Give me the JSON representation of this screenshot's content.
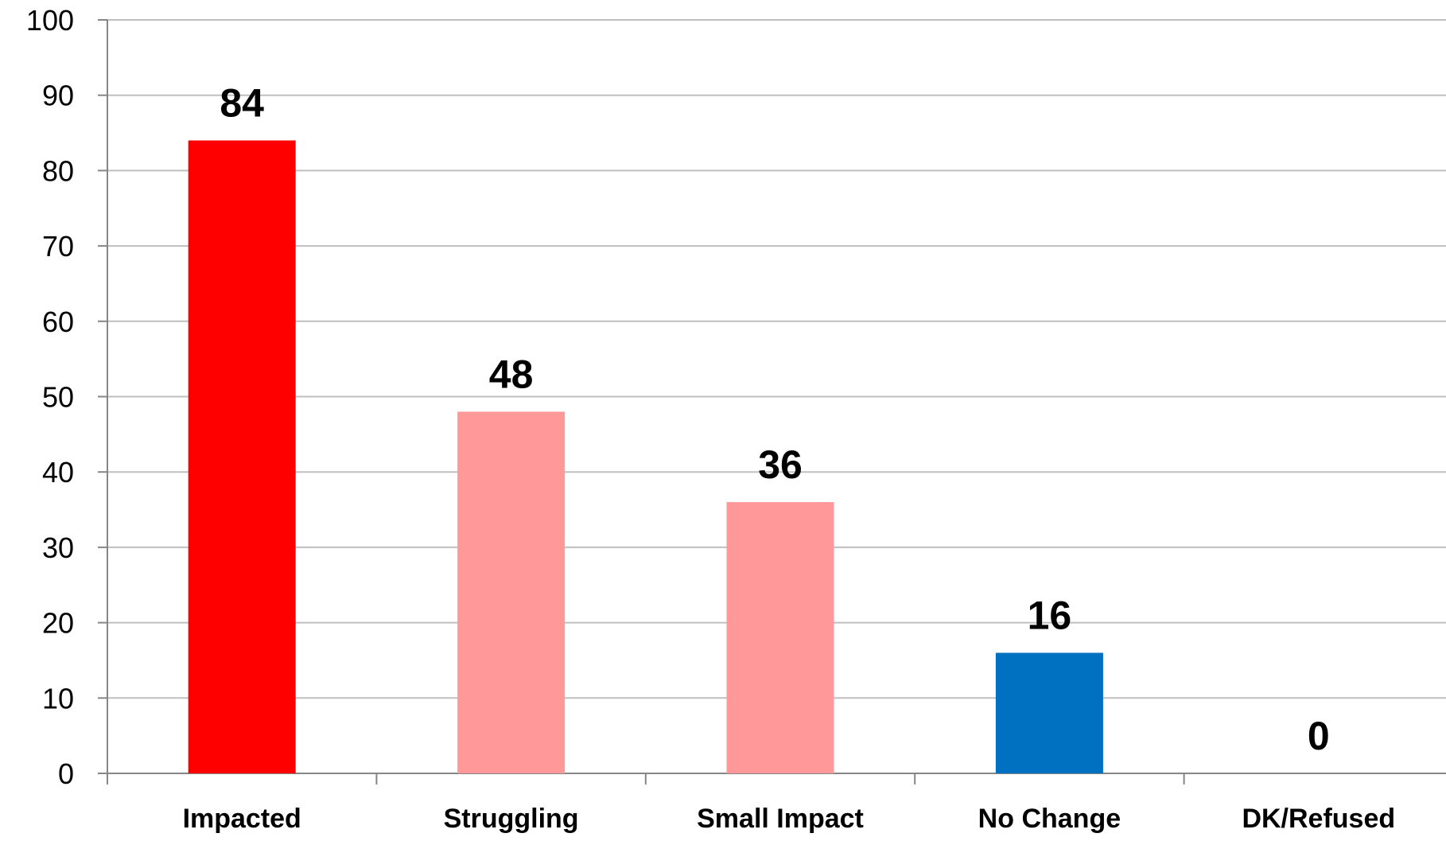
{
  "chart_data": {
    "type": "bar",
    "title": "",
    "xlabel": "",
    "ylabel": "",
    "categories": [
      "Impacted",
      "Struggling",
      "Small Impact",
      "No Change",
      "DK/Refused"
    ],
    "values": [
      84,
      48,
      36,
      16,
      0
    ],
    "bar_colors": [
      "#ff0000",
      "#ff9999",
      "#ff9999",
      "#0070c0",
      "#ff9999"
    ],
    "ylim": [
      0,
      100
    ],
    "yticks": [
      0,
      10,
      20,
      30,
      40,
      50,
      60,
      70,
      80,
      90,
      100
    ],
    "grid": true,
    "legend": "none",
    "data_labels": true
  }
}
